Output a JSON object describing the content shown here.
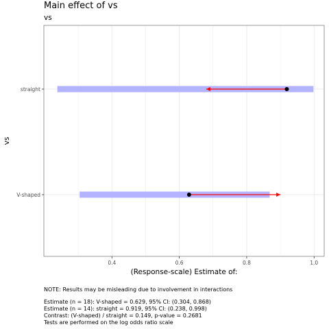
{
  "chart_data": {
    "type": "interval",
    "title": "Main effect of vs",
    "subtitle": "vs",
    "xlabel": "(Response-scale) Estimate of:",
    "ylabel": "vs",
    "xlim": [
      0.198,
      1.03
    ],
    "x_ticks": [
      0.4,
      0.6,
      0.8,
      1.0
    ],
    "x_tick_labels": [
      "0.4",
      "0.6",
      "0.8",
      "1.0"
    ],
    "categories": [
      "V-shaped",
      "straight"
    ],
    "estimates": [
      0.629,
      0.919
    ],
    "ci_low": [
      0.304,
      0.238
    ],
    "ci_high": [
      0.868,
      0.998
    ],
    "contrast_arrows": [
      {
        "category": "V-shaped",
        "from": 0.629,
        "to": 0.9
      },
      {
        "category": "straight",
        "from": 0.919,
        "to": 0.68
      }
    ],
    "colors": {
      "ci_band": "#b3b3ff",
      "arrow": "#ff0000",
      "point": "#000000",
      "grid": "#ebebeb",
      "panel_border": "#7f7f7f"
    },
    "grid": true,
    "legend": "none"
  },
  "notes": [
    "NOTE: Results may be misleading due to involvement in interactions",
    "",
    "Estimate (n = 18): V-shaped = 0.629, 95% CI: (0.304, 0.868)",
    "Estimate (n = 14): straight = 0.919, 95% CI: (0.238, 0.998)",
    "Contrast: (V-shaped) / straight = 0.149, p-value = 0.2681",
    "Tests are performed on the log odds ratio scale"
  ]
}
